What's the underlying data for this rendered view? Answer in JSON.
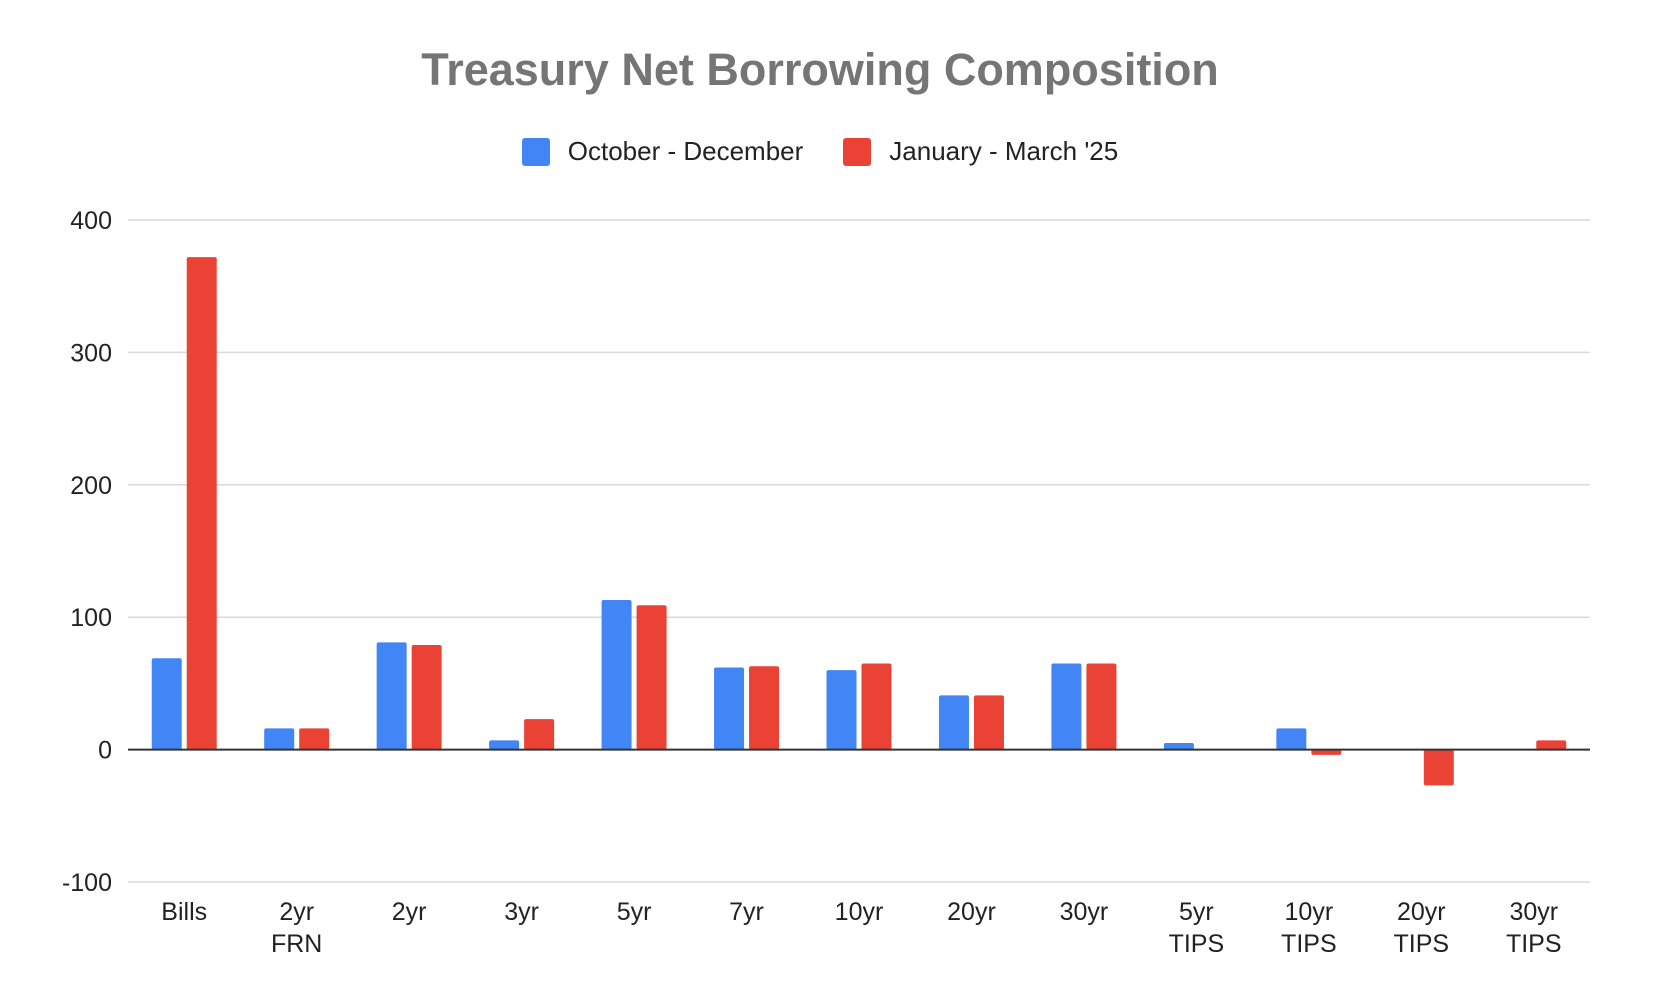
{
  "chart_data": {
    "type": "bar",
    "title": "Treasury Net Borrowing Composition",
    "xlabel": "",
    "ylabel": "",
    "categories": [
      [
        "Bills"
      ],
      [
        "2yr",
        "FRN"
      ],
      [
        "2yr"
      ],
      [
        "3yr"
      ],
      [
        "5yr"
      ],
      [
        "7yr"
      ],
      [
        "10yr"
      ],
      [
        "20yr"
      ],
      [
        "30yr"
      ],
      [
        "5yr",
        "TIPS"
      ],
      [
        "10yr",
        "TIPS"
      ],
      [
        "20yr",
        "TIPS"
      ],
      [
        "30yr",
        "TIPS"
      ]
    ],
    "series": [
      {
        "name": "October - December",
        "color": "#4285f4",
        "values": [
          69,
          16,
          81,
          7,
          113,
          62,
          60,
          41,
          65,
          5,
          16,
          0,
          0
        ]
      },
      {
        "name": "January - March '25",
        "color": "#ea4335",
        "values": [
          372,
          16,
          79,
          23,
          109,
          63,
          65,
          41,
          65,
          0,
          -4,
          -27,
          7
        ]
      }
    ],
    "ylim": [
      -100,
      400
    ],
    "yticks": [
      400,
      300,
      200,
      100,
      0,
      -100
    ],
    "grid": true,
    "legend": "top-center"
  }
}
